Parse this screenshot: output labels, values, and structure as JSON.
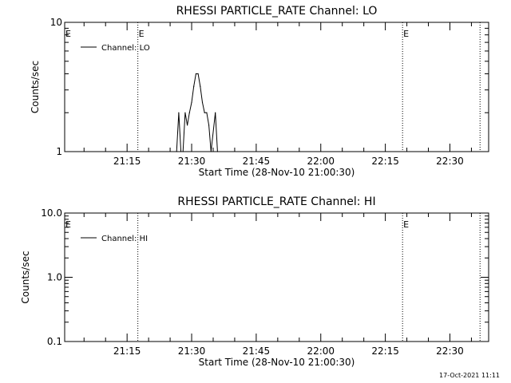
{
  "stamp": "17-Oct-2021 11:11",
  "colors": {
    "background": "#ffffff",
    "foreground": "#000000"
  },
  "chart_data": [
    {
      "type": "line",
      "title": "RHESSI PARTICLE_RATE Channel: LO",
      "xlabel": "Start Time (28-Nov-10 21:00:30)",
      "ylabel": "Counts/sec",
      "y_scale": "log",
      "ylim": [
        1,
        10
      ],
      "y_ticks": [
        {
          "v": 1,
          "label": "1"
        },
        {
          "v": 10,
          "label": "10"
        }
      ],
      "xlim": [
        "21:00:30",
        "22:39:00"
      ],
      "x_ticks": [
        "21:15",
        "21:30",
        "21:45",
        "22:00",
        "22:15",
        "22:30"
      ],
      "grid": false,
      "legend": {
        "position": "top-left",
        "entries": [
          "Channel: LO"
        ]
      },
      "event_lines": [
        {
          "time": "21:17:30",
          "label": "E"
        },
        {
          "time": "22:19:00",
          "label": "E"
        },
        {
          "time": "22:37:00",
          "label": ""
        }
      ],
      "left_edge_marker": "E",
      "series": [
        {
          "name": "Channel: LO",
          "points": [
            [
              "21:26:30",
              1
            ],
            [
              "21:27:00",
              2
            ],
            [
              "21:27:30",
              1
            ],
            [
              "21:28:00",
              1
            ],
            [
              "21:28:30",
              2
            ],
            [
              "21:29:00",
              1.6
            ],
            [
              "21:29:30",
              2
            ],
            [
              "21:30:00",
              2.4
            ],
            [
              "21:30:30",
              3.2
            ],
            [
              "21:31:00",
              4
            ],
            [
              "21:31:30",
              4
            ],
            [
              "21:32:00",
              3.2
            ],
            [
              "21:32:30",
              2.4
            ],
            [
              "21:33:00",
              2
            ],
            [
              "21:33:30",
              2
            ],
            [
              "21:34:00",
              1.6
            ],
            [
              "21:34:30",
              1
            ],
            [
              "21:35:30",
              2
            ],
            [
              "21:36:00",
              1
            ]
          ]
        }
      ]
    },
    {
      "type": "line",
      "title": "RHESSI PARTICLE_RATE Channel: HI",
      "xlabel": "Start Time (28-Nov-10 21:00:30)",
      "ylabel": "Counts/sec",
      "y_scale": "log",
      "ylim": [
        0.1,
        10
      ],
      "y_ticks": [
        {
          "v": 0.1,
          "label": "0.1"
        },
        {
          "v": 1,
          "label": "1.0"
        },
        {
          "v": 10,
          "label": "10.0"
        }
      ],
      "xlim": [
        "21:00:30",
        "22:39:00"
      ],
      "x_ticks": [
        "21:15",
        "21:30",
        "21:45",
        "22:00",
        "22:15",
        "22:30"
      ],
      "grid": false,
      "legend": {
        "position": "top-left",
        "entries": [
          "Channel: HI"
        ]
      },
      "event_lines": [
        {
          "time": "21:17:30",
          "label": ""
        },
        {
          "time": "22:19:00",
          "label": "E"
        },
        {
          "time": "22:37:00",
          "label": ""
        }
      ],
      "left_edge_marker": "E",
      "series": [
        {
          "name": "Channel: HI",
          "points": []
        }
      ]
    }
  ]
}
